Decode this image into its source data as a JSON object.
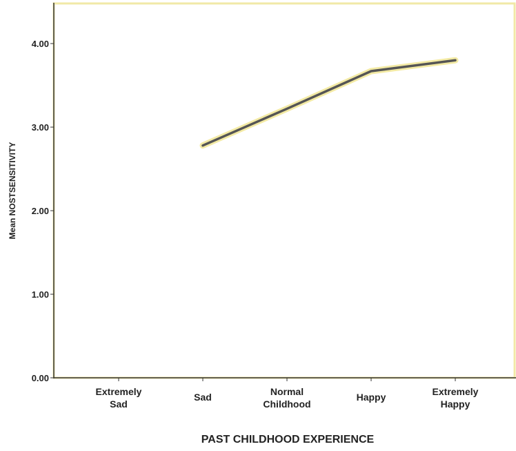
{
  "chart_data": {
    "type": "line",
    "x_label": "PAST CHILDHOOD EXPERIENCE",
    "y_label": "Mean NOSTSENSITIVITY",
    "categories": [
      "Extremely Sad",
      "Sad",
      "Normal Childhood",
      "Happy",
      "Extremely Happy"
    ],
    "series": [
      {
        "name": "Mean NOSTSENSITIVITY",
        "color": "#555555",
        "values": [
          null,
          2.78,
          3.22,
          3.67,
          3.8
        ]
      }
    ],
    "ylim": [
      0,
      4.48
    ],
    "yticks": [
      {
        "value": 0,
        "label": "0.00"
      },
      {
        "value": 1,
        "label": "1.00"
      },
      {
        "value": 2,
        "label": "2.00"
      },
      {
        "value": 3,
        "label": "3.00"
      },
      {
        "value": 4,
        "label": "4.00"
      }
    ],
    "grid": false
  }
}
